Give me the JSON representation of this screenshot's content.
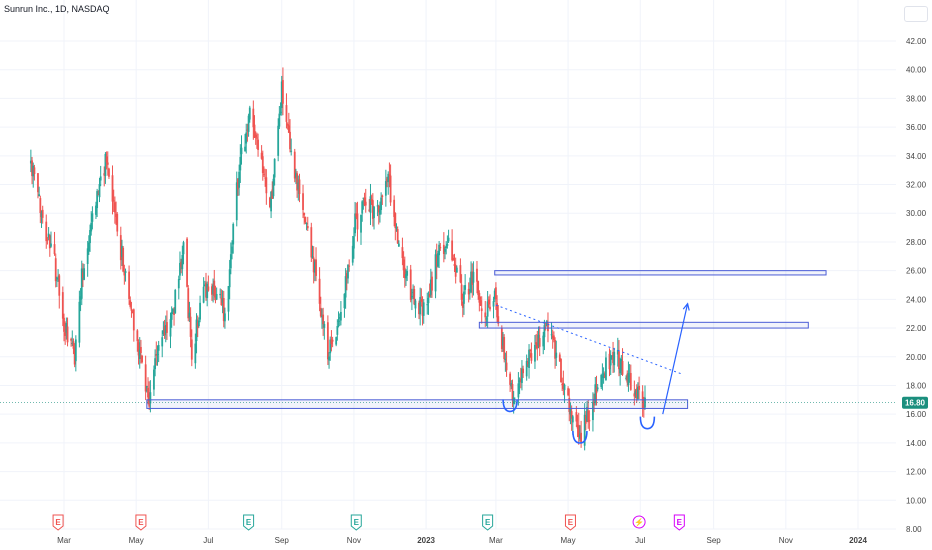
{
  "header": {
    "title": "Sunrun Inc., 1D, NASDAQ"
  },
  "colors": {
    "up": "#26a69a",
    "down": "#ef5350",
    "zone_stroke": "#4a5cd6",
    "zone_fill": "rgba(120,134,220,0.10)",
    "drawing": "#2962ff",
    "price_tag": "#1b8f7e",
    "grid": "#f0f3fa"
  },
  "chart_data": {
    "type": "candlestick",
    "symbol": "Sunrun Inc.",
    "interval": "1D",
    "exchange": "NASDAQ",
    "last_price": "16.80",
    "ylim": [
      8,
      43
    ],
    "y_ticks": [
      "8.00",
      "10.00",
      "12.00",
      "14.00",
      "16.00",
      "18.00",
      "20.00",
      "22.00",
      "24.00",
      "26.00",
      "28.00",
      "30.00",
      "32.00",
      "34.00",
      "36.00",
      "38.00",
      "40.00",
      "42.00"
    ],
    "x_ticks": [
      "Mar",
      "May",
      "Jul",
      "Sep",
      "Nov",
      "2023",
      "Mar",
      "May",
      "Jul",
      "Sep",
      "Nov",
      "2024"
    ],
    "approx_close_path": [
      [
        "2022-02-01",
        33.5
      ],
      [
        "2022-02-10",
        30.0
      ],
      [
        "2022-02-20",
        27.0
      ],
      [
        "2022-03-01",
        22.0
      ],
      [
        "2022-03-10",
        20.0
      ],
      [
        "2022-03-15",
        25.0
      ],
      [
        "2022-03-25",
        30.0
      ],
      [
        "2022-04-05",
        33.5
      ],
      [
        "2022-04-15",
        29.0
      ],
      [
        "2022-04-25",
        24.0
      ],
      [
        "2022-05-05",
        20.0
      ],
      [
        "2022-05-12",
        17.0
      ],
      [
        "2022-05-20",
        21.0
      ],
      [
        "2022-06-01",
        23.0
      ],
      [
        "2022-06-10",
        28.0
      ],
      [
        "2022-06-17",
        20.0
      ],
      [
        "2022-06-25",
        24.0
      ],
      [
        "2022-07-05",
        25.0
      ],
      [
        "2022-07-15",
        23.0
      ],
      [
        "2022-07-25",
        32.0
      ],
      [
        "2022-08-05",
        37.0
      ],
      [
        "2022-08-15",
        33.0
      ],
      [
        "2022-08-22",
        30.0
      ],
      [
        "2022-09-01",
        38.5
      ],
      [
        "2022-09-10",
        33.0
      ],
      [
        "2022-09-20",
        30.0
      ],
      [
        "2022-10-01",
        25.0
      ],
      [
        "2022-10-10",
        20.0
      ],
      [
        "2022-10-20",
        23.0
      ],
      [
        "2022-11-01",
        29.0
      ],
      [
        "2022-11-10",
        31.0
      ],
      [
        "2022-11-20",
        30.0
      ],
      [
        "2022-11-30",
        32.5
      ],
      [
        "2022-12-10",
        27.0
      ],
      [
        "2022-12-20",
        24.0
      ],
      [
        "2023-01-01",
        23.0
      ],
      [
        "2023-01-10",
        27.0
      ],
      [
        "2023-01-20",
        28.0
      ],
      [
        "2023-02-01",
        24.0
      ],
      [
        "2023-02-10",
        25.5
      ],
      [
        "2023-02-20",
        23.0
      ],
      [
        "2023-03-01",
        24.0
      ],
      [
        "2023-03-10",
        19.0
      ],
      [
        "2023-03-15",
        17.0
      ],
      [
        "2023-03-25",
        19.5
      ],
      [
        "2023-04-05",
        21.0
      ],
      [
        "2023-04-15",
        22.0
      ],
      [
        "2023-04-25",
        19.0
      ],
      [
        "2023-05-05",
        16.0
      ],
      [
        "2023-05-12",
        14.5
      ],
      [
        "2023-05-20",
        16.5
      ],
      [
        "2023-06-01",
        19.0
      ],
      [
        "2023-06-10",
        20.5
      ],
      [
        "2023-06-17",
        19.0
      ],
      [
        "2023-06-25",
        18.0
      ],
      [
        "2023-07-05",
        17.0
      ]
    ],
    "annotations": [
      {
        "kind": "zone",
        "from": "2022-05-10",
        "to": "2023-08-10",
        "low": 16.4,
        "high": 17.0
      },
      {
        "kind": "zone",
        "from": "2023-02-15",
        "to": "2023-11-20",
        "low": 22.0,
        "high": 22.4
      },
      {
        "kind": "zone",
        "from": "2023-02-28",
        "to": "2023-12-05",
        "low": 25.7,
        "high": 26.0
      },
      {
        "kind": "dotted_trendline",
        "from": [
          "2023-03-01",
          23.6
        ],
        "to": [
          "2023-08-05",
          18.8
        ]
      },
      {
        "kind": "arrow",
        "from": [
          "2023-07-20",
          16.0
        ],
        "to": [
          "2023-08-10",
          23.7
        ]
      },
      {
        "kind": "arc",
        "date": "2023-03-13",
        "price": 16.4
      },
      {
        "kind": "arc",
        "date": "2023-05-11",
        "price": 14.2
      },
      {
        "kind": "arc",
        "date": "2023-07-07",
        "price": 15.2
      }
    ],
    "events": [
      {
        "date": "2022-02-24",
        "label": "E",
        "type": "earnings-negative"
      },
      {
        "date": "2022-05-05",
        "label": "E",
        "type": "earnings-negative"
      },
      {
        "date": "2022-08-04",
        "label": "E",
        "type": "earnings-positive"
      },
      {
        "date": "2022-11-03",
        "label": "E",
        "type": "earnings-positive"
      },
      {
        "date": "2023-02-22",
        "label": "E",
        "type": "earnings-positive"
      },
      {
        "date": "2023-05-03",
        "label": "E",
        "type": "earnings-negative"
      },
      {
        "date": "2023-06-30",
        "label": "⚡",
        "type": "split-dividend"
      },
      {
        "date": "2023-08-03",
        "label": "E",
        "type": "earnings-upcoming"
      }
    ]
  }
}
